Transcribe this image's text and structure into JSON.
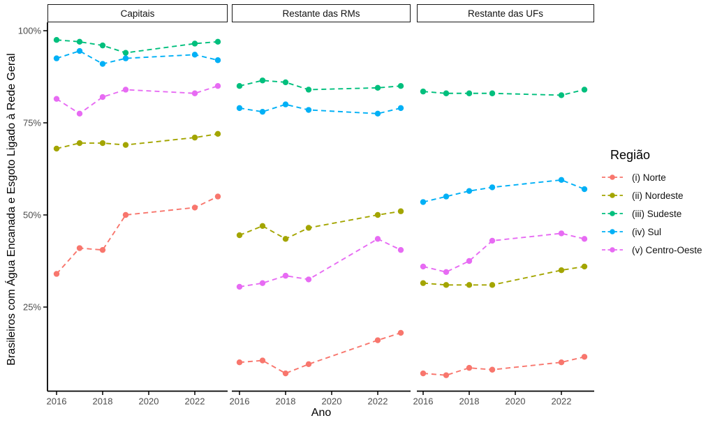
{
  "legend": {
    "title": "Região"
  },
  "chart_data": {
    "type": "line",
    "style": "dashed lines with point markers, faceted in 3 panels, no gridlines, white background",
    "xlabel": "Ano",
    "ylabel": "Brasileiros com Água Encanada e Esgoto Ligado à Rede Geral",
    "x": [
      2016,
      2017,
      2018,
      2019,
      2022,
      2023
    ],
    "x_ticks": [
      2016,
      2018,
      2020,
      2022
    ],
    "y_ticks": [
      100,
      75,
      50,
      25
    ],
    "y_tick_labels": [
      "100%",
      "75%",
      "50%",
      "25%"
    ],
    "ylim": [
      0,
      100
    ],
    "legend_position": "right",
    "series": [
      {
        "name": "(i) Norte",
        "slug": "norte",
        "color": "#F8766D"
      },
      {
        "name": "(ii) Nordeste",
        "slug": "nordeste",
        "color": "#A3A500"
      },
      {
        "name": "(iii) Sudeste",
        "slug": "sudeste",
        "color": "#00BF7D"
      },
      {
        "name": "(iv) Sul",
        "slug": "sul",
        "color": "#00B0F6"
      },
      {
        "name": "(v) Centro-Oeste",
        "slug": "centro-oeste",
        "color": "#E76BF3"
      }
    ],
    "facets": [
      {
        "label": "Capitais",
        "values": [
          [
            34,
            41,
            40.5,
            50,
            52,
            55
          ],
          [
            68,
            69.5,
            69.5,
            69,
            71,
            72
          ],
          [
            97.5,
            97,
            96,
            94,
            96.5,
            97
          ],
          [
            92.5,
            94.5,
            91,
            92.5,
            93.5,
            92
          ],
          [
            81.5,
            77.5,
            82,
            84,
            83,
            85
          ]
        ]
      },
      {
        "label": "Restante das RMs",
        "values": [
          [
            10,
            10.5,
            7,
            9.5,
            16,
            18
          ],
          [
            44.5,
            47,
            43.5,
            46.5,
            50,
            51
          ],
          [
            85,
            86.5,
            86,
            84,
            84.5,
            85
          ],
          [
            79,
            78,
            80,
            78.5,
            77.5,
            79
          ],
          [
            30.5,
            31.5,
            33.5,
            32.5,
            43.5,
            40.5
          ]
        ]
      },
      {
        "label": "Restante das UFs",
        "values": [
          [
            7,
            6.5,
            8.5,
            8,
            10,
            11.5
          ],
          [
            31.5,
            31,
            31,
            31,
            35,
            36
          ],
          [
            83.5,
            83,
            83,
            83,
            82.5,
            84
          ],
          [
            53.5,
            55,
            56.5,
            57.5,
            59.5,
            57
          ],
          [
            36,
            34.5,
            37.5,
            43,
            45,
            43.5
          ]
        ]
      }
    ]
  }
}
